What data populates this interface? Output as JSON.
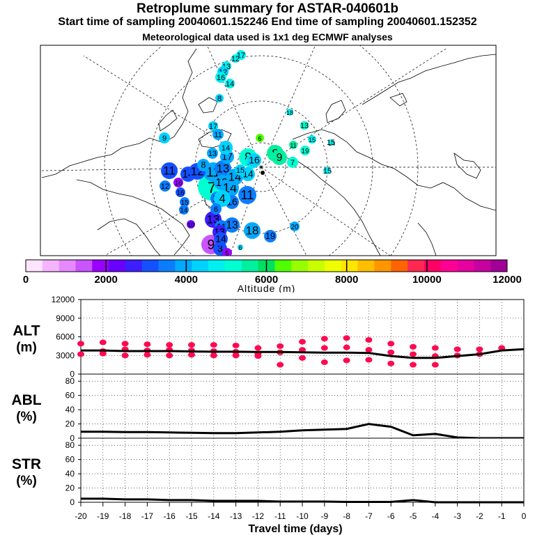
{
  "header": {
    "title": "Retroplume summary for ASTAR-040601b",
    "sampling": "Start time of sampling 20040601.152246     End time of sampling 20040601.152352",
    "met": "Meteorological data used is 1x1 deg ECMWF analyses"
  },
  "colors": {
    "scale": [
      "#ffe4ff",
      "#f5b4ff",
      "#e888ff",
      "#c855ff",
      "#9a00ff",
      "#6a00ff",
      "#3c1eff",
      "#1450ff",
      "#0a7dff",
      "#00aaff",
      "#00d2ff",
      "#00f0f0",
      "#00ffd2",
      "#00f0a0",
      "#00e060",
      "#50ff00",
      "#96ff00",
      "#c8ff00",
      "#f0ff00",
      "#ffe600",
      "#ffbe00",
      "#ff9600",
      "#ff6400",
      "#ff2850",
      "#ff0064",
      "#ff0096",
      "#e600a0",
      "#c800a0",
      "#a00096"
    ],
    "marker": "#ff0a50",
    "line": "#000000"
  },
  "colorbar": {
    "ticks": [
      "0",
      "2000",
      "4000",
      "6000",
      "8000",
      "10000",
      "12000"
    ],
    "label": "Altitude (m)"
  },
  "map": {
    "labels": [
      {
        "t": "7",
        "v": 5300
      },
      {
        "t": "11",
        "v": 3800
      },
      {
        "t": "13",
        "v": 3700
      },
      {
        "t": "12",
        "v": 3900
      },
      {
        "t": "14",
        "v": 4000
      },
      {
        "t": "14",
        "v": 3800
      },
      {
        "t": "17",
        "v": 3900
      },
      {
        "t": "11",
        "v": 3700
      },
      {
        "t": "16",
        "v": 3400
      },
      {
        "t": "8",
        "v": 5300
      },
      {
        "t": "15",
        "v": 4700
      },
      {
        "t": "16",
        "v": 4300
      },
      {
        "t": "6",
        "v": 6600
      },
      {
        "t": "8",
        "v": 5400
      },
      {
        "t": "9",
        "v": 5500
      },
      {
        "t": "7",
        "v": 5300
      },
      {
        "t": "11",
        "v": 5500
      },
      {
        "t": "19",
        "v": 5300
      },
      {
        "t": "13",
        "v": 5500
      },
      {
        "t": "15",
        "v": 4900
      },
      {
        "t": "18",
        "v": 4800
      },
      {
        "t": "12",
        "v": 4800
      },
      {
        "t": "14",
        "v": 4900
      },
      {
        "t": "11",
        "v": 2900
      },
      {
        "t": "14",
        "v": 3100
      },
      {
        "t": "12",
        "v": 3200
      },
      {
        "t": "8",
        "v": 4100
      },
      {
        "t": "16",
        "v": 1700
      },
      {
        "t": "12",
        "v": 3400
      },
      {
        "t": "16",
        "v": 3200
      },
      {
        "t": "15",
        "v": 3600
      },
      {
        "t": "14",
        "v": 3400
      },
      {
        "t": "10",
        "v": 2100
      },
      {
        "t": "13",
        "v": 2800
      },
      {
        "t": "11",
        "v": 3700
      },
      {
        "t": "4",
        "v": 4200
      },
      {
        "t": "6",
        "v": 3500
      },
      {
        "t": "11",
        "v": 3700
      },
      {
        "t": "14",
        "v": 4300
      },
      {
        "t": "13",
        "v": 3600
      },
      {
        "t": "18",
        "v": 3800
      },
      {
        "t": "20",
        "v": 4000
      },
      {
        "t": "19",
        "v": 3700
      },
      {
        "t": "9",
        "v": 1500
      },
      {
        "t": "13",
        "v": 2800
      },
      {
        "t": "3",
        "v": 3200
      },
      {
        "t": "14",
        "v": 3100
      },
      {
        "t": "5",
        "v": 1900
      },
      {
        "t": "6",
        "v": 4200
      },
      {
        "t": "2",
        "v": 2100
      }
    ]
  },
  "chart_data": [
    {
      "type": "scatter",
      "name": "ALT",
      "ylabel": "ALT (m)",
      "ylim": [
        0,
        12000
      ],
      "yticks": [
        0,
        3000,
        6000,
        9000,
        12000
      ],
      "line": {
        "x": [
          -20,
          -19,
          -18,
          -17,
          -16,
          -15,
          -14,
          -13,
          -12,
          -11,
          -10,
          -9,
          -8,
          -7,
          -6,
          -5,
          -4,
          -3,
          -2,
          -1,
          0
        ],
        "y": [
          3800,
          3800,
          3700,
          3700,
          3700,
          3650,
          3600,
          3600,
          3550,
          3550,
          3500,
          3450,
          3450,
          3400,
          2900,
          2600,
          2600,
          2900,
          3200,
          3800,
          4000
        ]
      },
      "markers": [
        {
          "x": -20,
          "y": 4900
        },
        {
          "x": -20,
          "y": 3200
        },
        {
          "x": -19,
          "y": 5100
        },
        {
          "x": -19,
          "y": 3700
        },
        {
          "x": -19,
          "y": 3300
        },
        {
          "x": -18,
          "y": 4900
        },
        {
          "x": -18,
          "y": 4000
        },
        {
          "x": -18,
          "y": 3000
        },
        {
          "x": -17,
          "y": 4800
        },
        {
          "x": -17,
          "y": 3800
        },
        {
          "x": -17,
          "y": 3100
        },
        {
          "x": -16,
          "y": 4700
        },
        {
          "x": -16,
          "y": 3900
        },
        {
          "x": -16,
          "y": 3000
        },
        {
          "x": -15,
          "y": 4700
        },
        {
          "x": -15,
          "y": 3800
        },
        {
          "x": -15,
          "y": 3100
        },
        {
          "x": -14,
          "y": 4700
        },
        {
          "x": -14,
          "y": 3700
        },
        {
          "x": -14,
          "y": 3000
        },
        {
          "x": -13,
          "y": 4600
        },
        {
          "x": -13,
          "y": 3600
        },
        {
          "x": -13,
          "y": 3000
        },
        {
          "x": -12,
          "y": 4200
        },
        {
          "x": -12,
          "y": 3300
        },
        {
          "x": -12,
          "y": 2900
        },
        {
          "x": -11,
          "y": 4500
        },
        {
          "x": -11,
          "y": 3500
        },
        {
          "x": -11,
          "y": 1500
        },
        {
          "x": -10,
          "y": 5200
        },
        {
          "x": -10,
          "y": 3900
        },
        {
          "x": -10,
          "y": 2600
        },
        {
          "x": -9,
          "y": 5700
        },
        {
          "x": -9,
          "y": 4200
        },
        {
          "x": -9,
          "y": 1900
        },
        {
          "x": -8,
          "y": 5800
        },
        {
          "x": -8,
          "y": 4300
        },
        {
          "x": -8,
          "y": 2200
        },
        {
          "x": -7,
          "y": 5500
        },
        {
          "x": -7,
          "y": 3900
        },
        {
          "x": -7,
          "y": 2300
        },
        {
          "x": -6,
          "y": 4900
        },
        {
          "x": -6,
          "y": 3500
        },
        {
          "x": -6,
          "y": 1700
        },
        {
          "x": -5,
          "y": 4400
        },
        {
          "x": -5,
          "y": 3200
        },
        {
          "x": -5,
          "y": 1500
        },
        {
          "x": -4,
          "y": 4200
        },
        {
          "x": -4,
          "y": 2900
        },
        {
          "x": -4,
          "y": 1500
        },
        {
          "x": -3,
          "y": 4000
        },
        {
          "x": -3,
          "y": 3000
        },
        {
          "x": -2,
          "y": 4000
        },
        {
          "x": -2,
          "y": 3200
        },
        {
          "x": -1,
          "y": 4200
        }
      ]
    },
    {
      "type": "line",
      "name": "ABL",
      "ylabel": "ABL (%)",
      "ylim": [
        0,
        90
      ],
      "yticks": [
        0,
        20,
        40,
        60,
        80
      ],
      "x": [
        -20,
        -19,
        -18,
        -17,
        -16,
        -15,
        -14,
        -13,
        -12,
        -11,
        -10,
        -9,
        -8,
        -7,
        -6,
        -5,
        -4,
        -3,
        -2,
        -1,
        0
      ],
      "y": [
        9,
        9,
        8.5,
        8.5,
        8,
        7.5,
        7,
        7,
        8,
        9,
        11,
        12,
        13,
        20,
        16,
        4,
        6,
        1,
        0,
        0,
        0
      ]
    },
    {
      "type": "line",
      "name": "STR",
      "ylabel": "STR (%)",
      "ylim": [
        0,
        90
      ],
      "yticks": [
        0,
        20,
        40,
        60,
        80
      ],
      "x": [
        -20,
        -19,
        -18,
        -17,
        -16,
        -15,
        -14,
        -13,
        -12,
        -11,
        -10,
        -9,
        -8,
        -7,
        -6,
        -5,
        -4,
        -3,
        -2,
        -1,
        0
      ],
      "y": [
        5,
        5,
        4,
        4,
        3,
        3,
        2,
        2,
        2,
        1,
        1,
        1,
        0.5,
        0.5,
        0.5,
        3,
        0,
        0,
        0,
        0,
        0
      ]
    }
  ],
  "xaxis": {
    "ticks": [
      "-20",
      "-19",
      "-18",
      "-17",
      "-16",
      "-15",
      "-14",
      "-13",
      "-12",
      "-11",
      "-10",
      "-9",
      "-8",
      "-7",
      "-6",
      "-5",
      "-4",
      "-3",
      "-2",
      "-1",
      "0"
    ],
    "label": "Travel time (days)"
  }
}
